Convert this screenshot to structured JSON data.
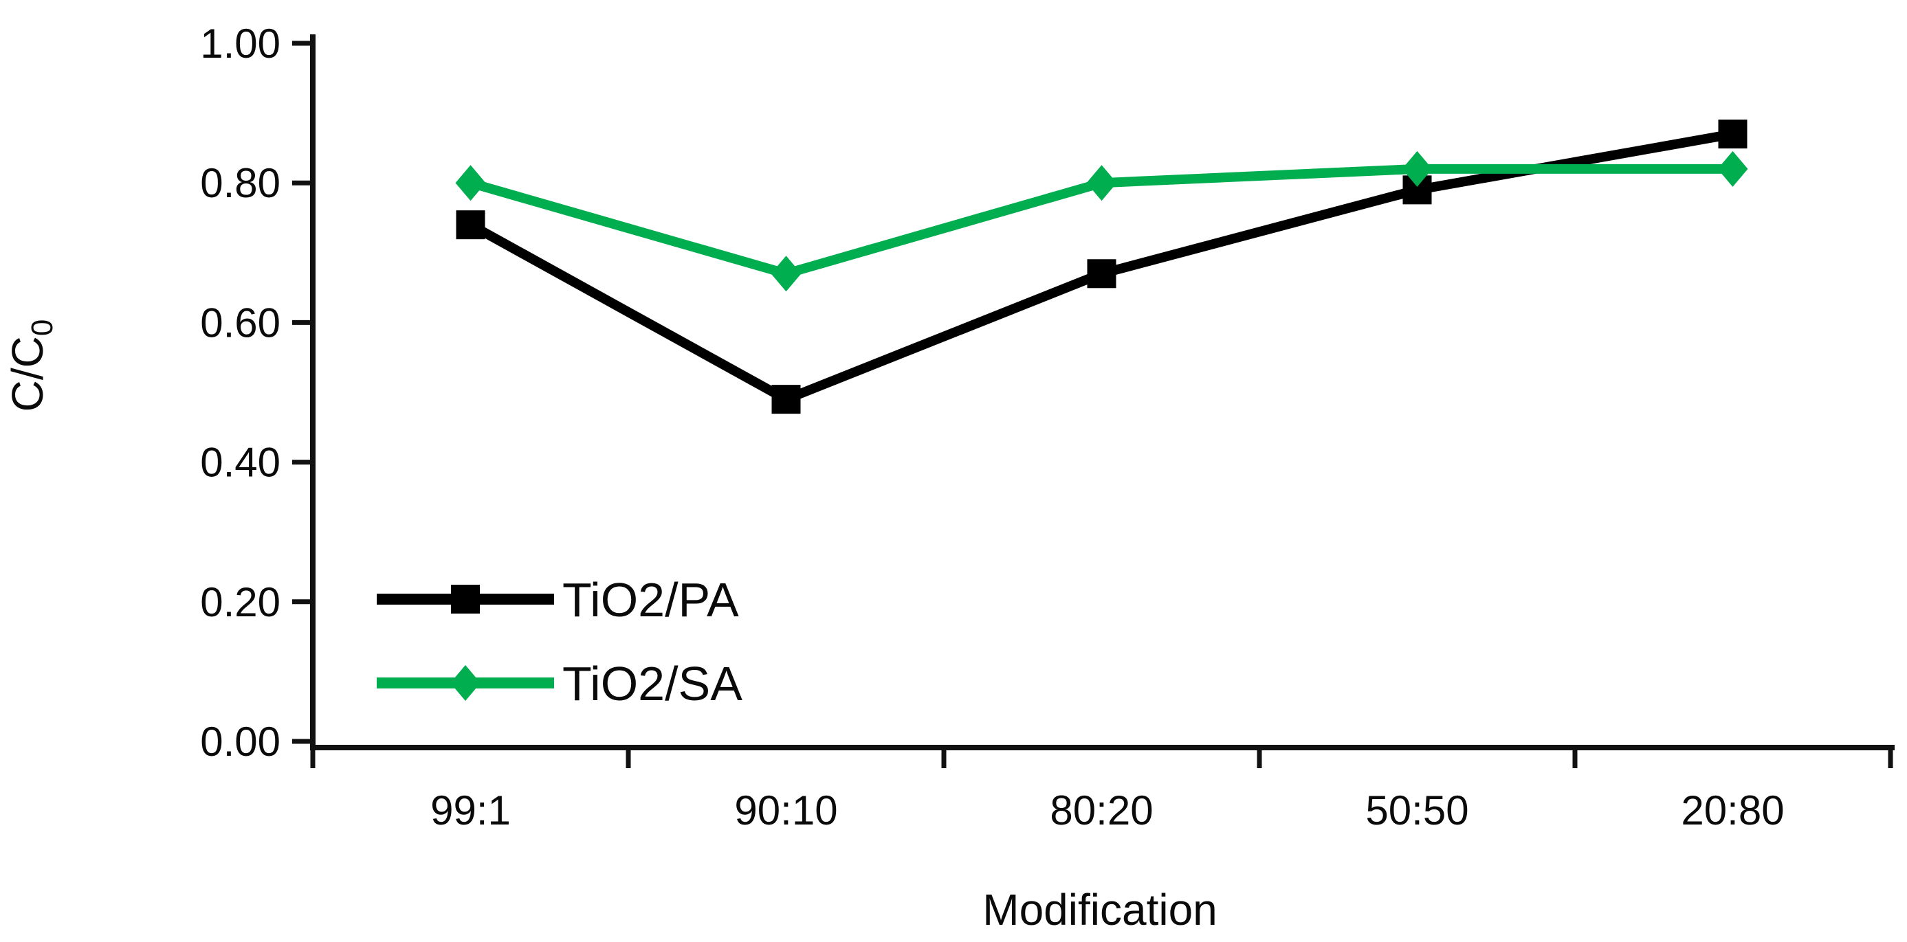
{
  "chart_data": {
    "type": "line",
    "title": "",
    "categories": [
      "99:1",
      "90:10",
      "80:20",
      "50:50",
      "20:80"
    ],
    "series": [
      {
        "name": "TiO2/PA",
        "color": "#000000",
        "marker": "square",
        "values": [
          0.74,
          0.49,
          0.67,
          0.79,
          0.87
        ]
      },
      {
        "name": "TiO2/SA",
        "color": "#00AE50",
        "marker": "diamond",
        "values": [
          0.8,
          0.67,
          0.8,
          0.82,
          0.82
        ]
      }
    ],
    "xlabel": "Modification",
    "ylabel": "C/C0",
    "ylabel_rich": {
      "base": "C/C",
      "sub": "0"
    },
    "ylim": [
      0.0,
      1.0
    ],
    "ytick_step": 0.2,
    "ytick_decimals": 2,
    "yticks": [
      "0.00",
      "0.20",
      "0.40",
      "0.60",
      "0.80",
      "1.00"
    ],
    "grid": false,
    "legend_position": "inside-bottom-left",
    "axis_color": "#111111",
    "background_color": "#ffffff"
  }
}
